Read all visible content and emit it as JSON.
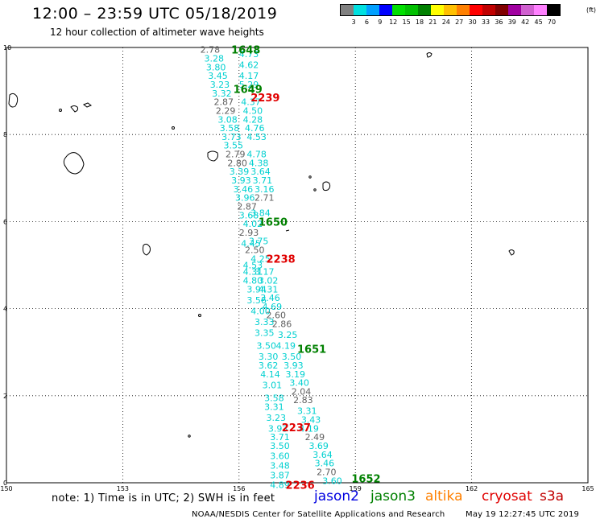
{
  "header": {
    "title": "12:00 – 23:59 UTC 05/18/2019",
    "subtitle": "12 hour collection of altimeter wave heights"
  },
  "color_scale": {
    "colors": [
      "#808080",
      "#00e0e0",
      "#00a0ff",
      "#0000ff",
      "#00e000",
      "#00c000",
      "#008000",
      "#ffff00",
      "#ffc000",
      "#ff8000",
      "#ff0000",
      "#c00000",
      "#800000",
      "#a000a0",
      "#d060d0",
      "#ff80ff",
      "#000000"
    ],
    "labels": [
      "3",
      "6",
      "9",
      "12",
      "15",
      "18",
      "21",
      "24",
      "27",
      "30",
      "33",
      "36",
      "39",
      "42",
      "45",
      "70"
    ],
    "unit": "(ft)"
  },
  "axes": {
    "x_ticks": [
      "150",
      "153",
      "156",
      "159",
      "162",
      "165"
    ],
    "y_ticks": [
      "0",
      "2",
      "4",
      "6",
      "8",
      "10"
    ]
  },
  "time_labels": [
    {
      "text": "1648",
      "color": "#008000",
      "lon": 155.8,
      "lat": 9.95
    },
    {
      "text": "1649",
      "color": "#008000",
      "lon": 155.85,
      "lat": 9.05
    },
    {
      "text": "2239",
      "color": "#e00000",
      "lon": 156.3,
      "lat": 8.85
    },
    {
      "text": "1650",
      "color": "#008000",
      "lon": 156.5,
      "lat": 6.0
    },
    {
      "text": "2238",
      "color": "#e00000",
      "lon": 156.7,
      "lat": 5.15
    },
    {
      "text": "1651",
      "color": "#008000",
      "lon": 157.5,
      "lat": 3.08
    },
    {
      "text": "2237",
      "color": "#e00000",
      "lon": 157.1,
      "lat": 1.28
    },
    {
      "text": "1652",
      "color": "#008000",
      "lon": 158.9,
      "lat": 0.1
    },
    {
      "text": "2236",
      "color": "#e00000",
      "lon": 157.2,
      "lat": -0.05
    }
  ],
  "wave_heights": [
    {
      "v": "2.78",
      "c": "#606060",
      "lon": 155.0,
      "lat": 9.95
    },
    {
      "v": "4.73",
      "c": "#00d0d0",
      "lon": 156.0,
      "lat": 9.85
    },
    {
      "v": "3.28",
      "c": "#00d0d0",
      "lon": 155.1,
      "lat": 9.75
    },
    {
      "v": "4.62",
      "c": "#00d0d0",
      "lon": 156.0,
      "lat": 9.6
    },
    {
      "v": "3.80",
      "c": "#00d0d0",
      "lon": 155.15,
      "lat": 9.55
    },
    {
      "v": "3.45",
      "c": "#00d0d0",
      "lon": 155.2,
      "lat": 9.35
    },
    {
      "v": "4.17",
      "c": "#00d0d0",
      "lon": 156.0,
      "lat": 9.35
    },
    {
      "v": "3.23",
      "c": "#00d0d0",
      "lon": 155.25,
      "lat": 9.15
    },
    {
      "v": "5.29",
      "c": "#00d0d0",
      "lon": 156.0,
      "lat": 9.15
    },
    {
      "v": "3.32",
      "c": "#00d0d0",
      "lon": 155.3,
      "lat": 8.95
    },
    {
      "v": "2.87",
      "c": "#606060",
      "lon": 155.35,
      "lat": 8.75
    },
    {
      "v": "4.37",
      "c": "#00d0d0",
      "lon": 156.05,
      "lat": 8.75
    },
    {
      "v": "2.29",
      "c": "#606060",
      "lon": 155.4,
      "lat": 8.55
    },
    {
      "v": "4.50",
      "c": "#00d0d0",
      "lon": 156.1,
      "lat": 8.55
    },
    {
      "v": "3.08",
      "c": "#00d0d0",
      "lon": 155.45,
      "lat": 8.35
    },
    {
      "v": "4.28",
      "c": "#00d0d0",
      "lon": 156.1,
      "lat": 8.35
    },
    {
      "v": "3.58",
      "c": "#00d0d0",
      "lon": 155.5,
      "lat": 8.15
    },
    {
      "v": "4.76",
      "c": "#00d0d0",
      "lon": 156.15,
      "lat": 8.15
    },
    {
      "v": "3.73",
      "c": "#00d0d0",
      "lon": 155.55,
      "lat": 7.95
    },
    {
      "v": "4.53",
      "c": "#00d0d0",
      "lon": 156.2,
      "lat": 7.95
    },
    {
      "v": "3.55",
      "c": "#00d0d0",
      "lon": 155.6,
      "lat": 7.75
    },
    {
      "v": "2.79",
      "c": "#606060",
      "lon": 155.65,
      "lat": 7.55
    },
    {
      "v": "4.78",
      "c": "#00d0d0",
      "lon": 156.2,
      "lat": 7.55
    },
    {
      "v": "2.80",
      "c": "#606060",
      "lon": 155.7,
      "lat": 7.35
    },
    {
      "v": "4.38",
      "c": "#00d0d0",
      "lon": 156.25,
      "lat": 7.35
    },
    {
      "v": "3.39",
      "c": "#00d0d0",
      "lon": 155.75,
      "lat": 7.15
    },
    {
      "v": "3.64",
      "c": "#00d0d0",
      "lon": 156.3,
      "lat": 7.15
    },
    {
      "v": "3.93",
      "c": "#00d0d0",
      "lon": 155.8,
      "lat": 6.95
    },
    {
      "v": "3.71",
      "c": "#00d0d0",
      "lon": 156.35,
      "lat": 6.95
    },
    {
      "v": "3.46",
      "c": "#00d0d0",
      "lon": 155.85,
      "lat": 6.75
    },
    {
      "v": "3.16",
      "c": "#00d0d0",
      "lon": 156.4,
      "lat": 6.75
    },
    {
      "v": "3.96",
      "c": "#00d0d0",
      "lon": 155.9,
      "lat": 6.55
    },
    {
      "v": "2.71",
      "c": "#606060",
      "lon": 156.4,
      "lat": 6.55
    },
    {
      "v": "2.87",
      "c": "#606060",
      "lon": 155.95,
      "lat": 6.35
    },
    {
      "v": "3.84",
      "c": "#00d0d0",
      "lon": 156.3,
      "lat": 6.2
    },
    {
      "v": "3.68",
      "c": "#00d0d0",
      "lon": 156.0,
      "lat": 6.15
    },
    {
      "v": "4.02",
      "c": "#00d0d0",
      "lon": 156.1,
      "lat": 5.95
    },
    {
      "v": "2.93",
      "c": "#606060",
      "lon": 156.0,
      "lat": 5.75
    },
    {
      "v": "3.75",
      "c": "#00d0d0",
      "lon": 156.25,
      "lat": 5.55
    },
    {
      "v": "4.45",
      "c": "#00d0d0",
      "lon": 156.05,
      "lat": 5.5
    },
    {
      "v": "2.50",
      "c": "#606060",
      "lon": 156.15,
      "lat": 5.35
    },
    {
      "v": "4.25",
      "c": "#00d0d0",
      "lon": 156.3,
      "lat": 5.15
    },
    {
      "v": "4.53",
      "c": "#00d0d0",
      "lon": 156.1,
      "lat": 5.0
    },
    {
      "v": "4.31",
      "c": "#00d0d0",
      "lon": 156.1,
      "lat": 4.85
    },
    {
      "v": "3.17",
      "c": "#00d0d0",
      "lon": 156.4,
      "lat": 4.85
    },
    {
      "v": "4.80",
      "c": "#00d0d0",
      "lon": 156.1,
      "lat": 4.65
    },
    {
      "v": "3.02",
      "c": "#00d0d0",
      "lon": 156.5,
      "lat": 4.65
    },
    {
      "v": "3.94",
      "c": "#00d0d0",
      "lon": 156.2,
      "lat": 4.45
    },
    {
      "v": "4.31",
      "c": "#00d0d0",
      "lon": 156.5,
      "lat": 4.45
    },
    {
      "v": "3.56",
      "c": "#00d0d0",
      "lon": 156.2,
      "lat": 4.2
    },
    {
      "v": "3.46",
      "c": "#00d0d0",
      "lon": 156.55,
      "lat": 4.25
    },
    {
      "v": "4.69",
      "c": "#00d0d0",
      "lon": 156.6,
      "lat": 4.05
    },
    {
      "v": "4.00",
      "c": "#00d0d0",
      "lon": 156.3,
      "lat": 3.95
    },
    {
      "v": "2.60",
      "c": "#606060",
      "lon": 156.7,
      "lat": 3.85
    },
    {
      "v": "3.33",
      "c": "#00d0d0",
      "lon": 156.4,
      "lat": 3.7
    },
    {
      "v": "2.86",
      "c": "#606060",
      "lon": 156.85,
      "lat": 3.65
    },
    {
      "v": "3.35",
      "c": "#00d0d0",
      "lon": 156.4,
      "lat": 3.45
    },
    {
      "v": "3.25",
      "c": "#00d0d0",
      "lon": 157.0,
      "lat": 3.4
    },
    {
      "v": "3.50",
      "c": "#00d0d0",
      "lon": 156.45,
      "lat": 3.15
    },
    {
      "v": "4.19",
      "c": "#00d0d0",
      "lon": 156.95,
      "lat": 3.15
    },
    {
      "v": "3.30",
      "c": "#00d0d0",
      "lon": 156.5,
      "lat": 2.9
    },
    {
      "v": "3.50",
      "c": "#00d0d0",
      "lon": 157.1,
      "lat": 2.9
    },
    {
      "v": "3.62",
      "c": "#00d0d0",
      "lon": 156.5,
      "lat": 2.7
    },
    {
      "v": "3.93",
      "c": "#00d0d0",
      "lon": 157.15,
      "lat": 2.7
    },
    {
      "v": "4.14",
      "c": "#00d0d0",
      "lon": 156.55,
      "lat": 2.5
    },
    {
      "v": "3.19",
      "c": "#00d0d0",
      "lon": 157.2,
      "lat": 2.5
    },
    {
      "v": "3.01",
      "c": "#00d0d0",
      "lon": 156.6,
      "lat": 2.25
    },
    {
      "v": "3.40",
      "c": "#00d0d0",
      "lon": 157.3,
      "lat": 2.3
    },
    {
      "v": "2.04",
      "c": "#606060",
      "lon": 157.35,
      "lat": 2.1
    },
    {
      "v": "3.58",
      "c": "#00d0d0",
      "lon": 156.65,
      "lat": 1.95
    },
    {
      "v": "2.83",
      "c": "#606060",
      "lon": 157.4,
      "lat": 1.9
    },
    {
      "v": "3.31",
      "c": "#00d0d0",
      "lon": 156.65,
      "lat": 1.75
    },
    {
      "v": "3.31",
      "c": "#00d0d0",
      "lon": 157.5,
      "lat": 1.65
    },
    {
      "v": "3.23",
      "c": "#00d0d0",
      "lon": 156.7,
      "lat": 1.5
    },
    {
      "v": "3.43",
      "c": "#00d0d0",
      "lon": 157.6,
      "lat": 1.45
    },
    {
      "v": "3.93",
      "c": "#00d0d0",
      "lon": 156.75,
      "lat": 1.25
    },
    {
      "v": "4.19",
      "c": "#00d0d0",
      "lon": 157.55,
      "lat": 1.25
    },
    {
      "v": "3.71",
      "c": "#00d0d0",
      "lon": 156.8,
      "lat": 1.05
    },
    {
      "v": "2.49",
      "c": "#606060",
      "lon": 157.7,
      "lat": 1.05
    },
    {
      "v": "3.50",
      "c": "#00d0d0",
      "lon": 156.8,
      "lat": 0.85
    },
    {
      "v": "3.69",
      "c": "#00d0d0",
      "lon": 157.8,
      "lat": 0.85
    },
    {
      "v": "3.60",
      "c": "#00d0d0",
      "lon": 156.8,
      "lat": 0.62
    },
    {
      "v": "3.64",
      "c": "#00d0d0",
      "lon": 157.9,
      "lat": 0.65
    },
    {
      "v": "3.48",
      "c": "#00d0d0",
      "lon": 156.8,
      "lat": 0.4
    },
    {
      "v": "3.46",
      "c": "#00d0d0",
      "lon": 157.95,
      "lat": 0.45
    },
    {
      "v": "2.70",
      "c": "#606060",
      "lon": 158.0,
      "lat": 0.25
    },
    {
      "v": "3.87",
      "c": "#00d0d0",
      "lon": 156.8,
      "lat": 0.18
    },
    {
      "v": "3.60",
      "c": "#00d0d0",
      "lon": 158.15,
      "lat": 0.05
    },
    {
      "v": "4.89",
      "c": "#00d0d0",
      "lon": 156.8,
      "lat": -0.05
    }
  ],
  "note": "note:  1) Time is in UTC;  2) SWH is in feet",
  "legend": [
    {
      "label": "jason2",
      "color": "#0000e0"
    },
    {
      "label": "jason3",
      "color": "#008000"
    },
    {
      "label": "altika",
      "color": "#ff8000"
    },
    {
      "label": "cryosat",
      "color": "#e00000"
    },
    {
      "label": "s3a",
      "color": "#c00000"
    }
  ],
  "footer": {
    "agency": "NOAA/NESDIS Center for Satellite Applications and Research",
    "timestamp": "May 19 12:27:45 UTC 2019"
  }
}
